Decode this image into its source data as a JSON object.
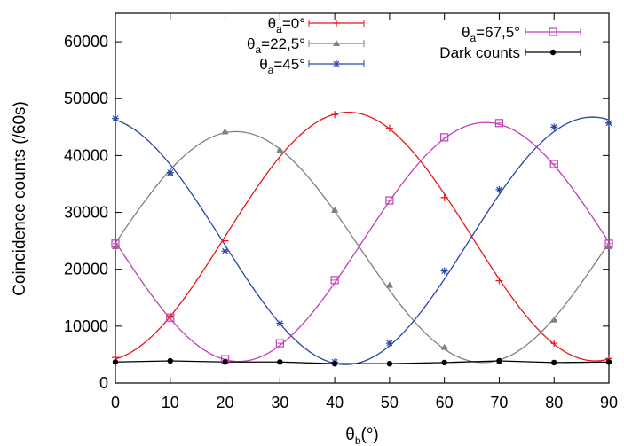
{
  "chart_data": {
    "type": "line",
    "xlabel": {
      "main": "θ",
      "sub": "b",
      "tail": "(°)"
    },
    "ylabel": "Coincidence counts (/60s)",
    "xlim": [
      0,
      90
    ],
    "ylim": [
      0,
      65000
    ],
    "x_ticks": [
      0,
      10,
      20,
      30,
      40,
      50,
      60,
      70,
      80,
      90
    ],
    "y_ticks": [
      0,
      10000,
      20000,
      30000,
      40000,
      50000,
      60000
    ],
    "grid": false,
    "legend_columns": [
      {
        "position": "top-left",
        "series": [
          0,
          1,
          2
        ]
      },
      {
        "position": "top-right",
        "series": [
          3,
          4
        ]
      }
    ],
    "x": [
      0,
      10,
      20,
      30,
      40,
      50,
      60,
      70,
      80,
      90
    ],
    "series": [
      {
        "name": "θa=0°",
        "name_parts": {
          "main": "θ",
          "sub": "a",
          "tail": "=0°"
        },
        "color": "#e8151b",
        "marker": "plus",
        "values": [
          4500,
          11800,
          25000,
          39200,
          47200,
          44800,
          32600,
          18000,
          7000,
          4300
        ],
        "fit": {
          "amplitude": 21850,
          "offset": 25750,
          "peak_at": 42.5
        }
      },
      {
        "name": "θa=22,5°",
        "name_parts": {
          "main": "θ",
          "sub": "a",
          "tail": "=22,5°"
        },
        "color": "#808080",
        "marker": "triangle",
        "values": [
          24000,
          36800,
          44200,
          41000,
          30400,
          17200,
          6300,
          3800,
          11100,
          24000
        ],
        "fit": {
          "amplitude": 20300,
          "offset": 23900,
          "peak_at": 22
        }
      },
      {
        "name": "θa=45°",
        "name_parts": {
          "main": "θ",
          "sub": "a",
          "tail": "=45°"
        },
        "color": "#2945a8",
        "marker": "star",
        "values": [
          46500,
          37000,
          23200,
          10500,
          3700,
          7000,
          19700,
          34000,
          45000,
          45700
        ],
        "fit": {
          "amplitude": 21750,
          "offset": 25000,
          "peak_at": -3
        }
      },
      {
        "name": "θa=67,5°",
        "name_parts": {
          "main": "θ",
          "sub": "a",
          "tail": "=67,5°"
        },
        "color": "#c13fb7",
        "marker": "square",
        "values": [
          24500,
          11500,
          4200,
          7000,
          18100,
          32100,
          43200,
          45700,
          38500,
          24500
        ],
        "fit": {
          "amplitude": 21000,
          "offset": 24800,
          "peak_at": 67.5
        }
      },
      {
        "name": "Dark counts",
        "name_parts": {
          "main": "Dark counts",
          "sub": "",
          "tail": ""
        },
        "color": "#000000",
        "marker": "circle",
        "values": [
          3700,
          3900,
          3700,
          3700,
          3400,
          3400,
          3600,
          3900,
          3600,
          3700
        ],
        "fit": null
      }
    ]
  }
}
